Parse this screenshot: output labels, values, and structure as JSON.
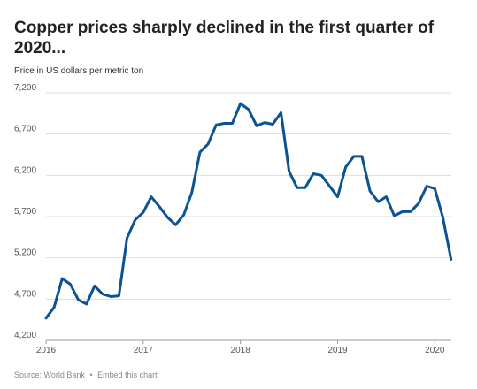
{
  "title": "Copper prices sharply declined in the first quarter of 2020...",
  "subtitle": "Price in US dollars per metric ton",
  "footer": {
    "source": "Source: World Bank",
    "separator": "•",
    "embed": "Embed this chart"
  },
  "colors": {
    "line": "#0b5394",
    "grid": "#dddddd",
    "tick": "#555555"
  },
  "chart_data": {
    "type": "line",
    "ylim": [
      4200,
      7200
    ],
    "yticks": [
      4200,
      4700,
      5200,
      5700,
      6200,
      6700,
      7200
    ],
    "ytick_labels": [
      "4,200",
      "4,700",
      "5,200",
      "5,700",
      "6,200",
      "6,700",
      "7,200"
    ],
    "xlim": [
      2016,
      2020.17
    ],
    "xticks": [
      2016,
      2017,
      2018,
      2019,
      2020
    ],
    "xtick_labels": [
      "2016",
      "2017",
      "2018",
      "2019",
      "2020"
    ],
    "grid": true,
    "series": [
      {
        "x": [
          2016.0,
          2016.083,
          2016.167,
          2016.25,
          2016.333,
          2016.417,
          2016.5,
          2016.583,
          2016.667,
          2016.75,
          2016.833,
          2016.917,
          2017.0,
          2017.083,
          2017.167,
          2017.25,
          2017.333,
          2017.417,
          2017.5,
          2017.583,
          2017.667,
          2017.75,
          2017.833,
          2017.917,
          2018.0,
          2018.083,
          2018.167,
          2018.25,
          2018.333,
          2018.417,
          2018.5,
          2018.583,
          2018.667,
          2018.75,
          2018.833,
          2018.917,
          2019.0,
          2019.083,
          2019.167,
          2019.25,
          2019.333,
          2019.417,
          2019.5,
          2019.583,
          2019.667,
          2019.75,
          2019.833,
          2019.917,
          2020.0,
          2020.083,
          2020.167
        ],
        "y": [
          4470,
          4600,
          4950,
          4880,
          4690,
          4640,
          4860,
          4760,
          4730,
          4740,
          5440,
          5660,
          5750,
          5940,
          5820,
          5690,
          5600,
          5720,
          5990,
          6480,
          6580,
          6810,
          6830,
          6830,
          7070,
          7000,
          6800,
          6840,
          6820,
          6960,
          6250,
          6050,
          6050,
          6220,
          6200,
          6070,
          5940,
          6300,
          6430,
          6430,
          6010,
          5880,
          5940,
          5710,
          5760,
          5760,
          5860,
          6070,
          6040,
          5690,
          5180
        ]
      }
    ]
  }
}
